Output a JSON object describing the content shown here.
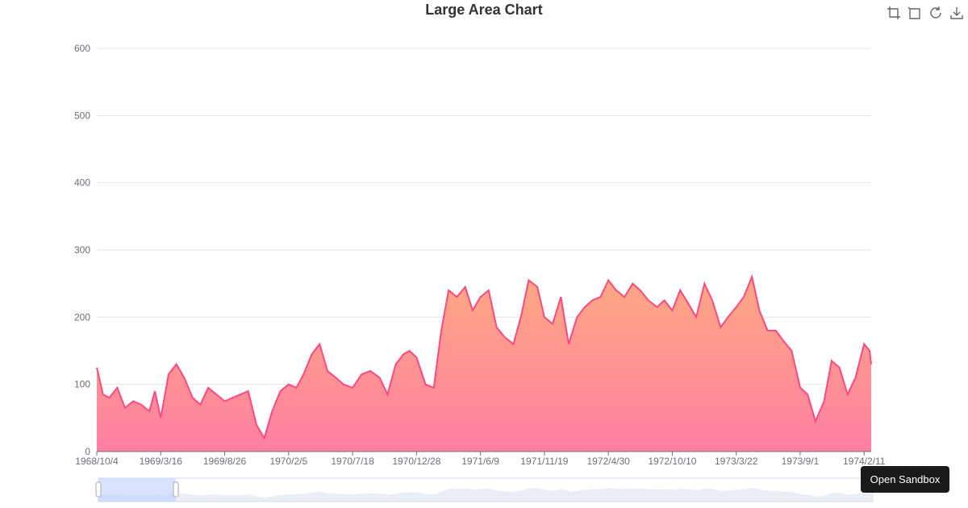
{
  "toolbox": {
    "icons": [
      "zoom-icon",
      "zoom-reset-icon",
      "restore-icon",
      "save-image-icon"
    ]
  },
  "sandbox_button": {
    "label": "Open Sandbox"
  },
  "chart_data": {
    "type": "area",
    "title": "Large Area Chart",
    "xlabel": "",
    "ylabel": "",
    "ylim": [
      0,
      600
    ],
    "y_ticks": [
      0,
      100,
      200,
      300,
      400,
      500,
      600
    ],
    "x_range": [
      "1968/10/4",
      "1974/3/1"
    ],
    "x_tick_labels": [
      "1968/10/4",
      "1969/3/16",
      "1969/8/26",
      "1970/2/5",
      "1970/7/18",
      "1970/12/28",
      "1971/6/9",
      "1971/11/19",
      "1972/4/30",
      "1972/10/10",
      "1973/3/22",
      "1973/9/1",
      "1974/2/11"
    ],
    "grid": true,
    "colors": {
      "line": "#ff4a7f",
      "area_top": "#ffa883",
      "area_bottom": "#ff7fa3"
    },
    "series": [
      {
        "x": [
          "1968/10/4",
          "1968/10/20",
          "1968/11/5",
          "1968/11/25",
          "1968/12/15",
          "1969/1/5",
          "1969/1/25",
          "1969/2/15",
          "1969/3/1",
          "1969/3/16",
          "1969/4/5",
          "1969/4/25",
          "1969/5/15",
          "1969/6/5",
          "1969/6/25",
          "1969/7/15",
          "1969/8/5",
          "1969/8/26",
          "1969/9/15",
          "1969/10/5",
          "1969/10/25",
          "1969/11/15",
          "1969/12/5",
          "1969/12/25",
          "1970/1/15",
          "1970/2/5",
          "1970/2/25",
          "1970/3/15",
          "1970/4/5",
          "1970/4/25",
          "1970/5/15",
          "1970/6/5",
          "1970/6/25",
          "1970/7/18",
          "1970/8/10",
          "1970/9/1",
          "1970/9/25",
          "1970/10/15",
          "1970/11/5",
          "1970/11/25",
          "1970/12/10",
          "1970/12/28",
          "1971/1/20",
          "1971/2/10",
          "1971/3/1",
          "1971/3/20",
          "1971/4/10",
          "1971/5/1",
          "1971/5/20",
          "1971/6/9",
          "1971/6/30",
          "1971/7/20",
          "1971/8/10",
          "1971/9/1",
          "1971/9/20",
          "1971/10/10",
          "1971/11/1",
          "1971/11/19",
          "1971/12/10",
          "1971/12/31",
          "1972/1/20",
          "1972/2/10",
          "1972/3/1",
          "1972/3/20",
          "1972/4/10",
          "1972/4/30",
          "1972/5/20",
          "1972/6/10",
          "1972/7/1",
          "1972/7/20",
          "1972/8/10",
          "1972/9/1",
          "1972/9/20",
          "1972/10/10",
          "1972/10/30",
          "1972/11/20",
          "1972/12/10",
          "1972/12/31",
          "1973/1/20",
          "1973/2/10",
          "1973/3/1",
          "1973/3/22",
          "1973/4/10",
          "1973/5/1",
          "1973/5/20",
          "1973/6/10",
          "1973/7/1",
          "1973/7/20",
          "1973/8/10",
          "1973/9/1",
          "1973/9/20",
          "1973/10/10",
          "1973/11/1",
          "1973/11/20",
          "1973/12/10",
          "1973/12/31",
          "1974/1/20",
          "1974/2/11",
          "1974/2/25",
          "1974/3/1"
        ],
        "y": [
          125,
          85,
          80,
          95,
          65,
          75,
          70,
          60,
          90,
          50,
          115,
          130,
          110,
          80,
          70,
          95,
          85,
          75,
          80,
          85,
          90,
          40,
          20,
          60,
          90,
          100,
          95,
          115,
          145,
          160,
          120,
          110,
          100,
          95,
          115,
          120,
          110,
          85,
          130,
          145,
          150,
          140,
          100,
          95,
          180,
          240,
          230,
          245,
          210,
          230,
          240,
          185,
          170,
          160,
          200,
          255,
          245,
          200,
          190,
          230,
          160,
          200,
          215,
          225,
          230,
          255,
          240,
          230,
          250,
          240,
          225,
          215,
          225,
          210,
          240,
          220,
          200,
          250,
          225,
          185,
          200,
          215,
          230,
          260,
          210,
          180,
          180,
          165,
          150,
          95,
          85,
          45,
          75,
          135,
          125,
          85,
          110,
          160,
          150,
          130
        ]
      }
    ],
    "data_zoom": {
      "start_label": "1968/10/4",
      "end_label": "1974/2/11"
    }
  }
}
